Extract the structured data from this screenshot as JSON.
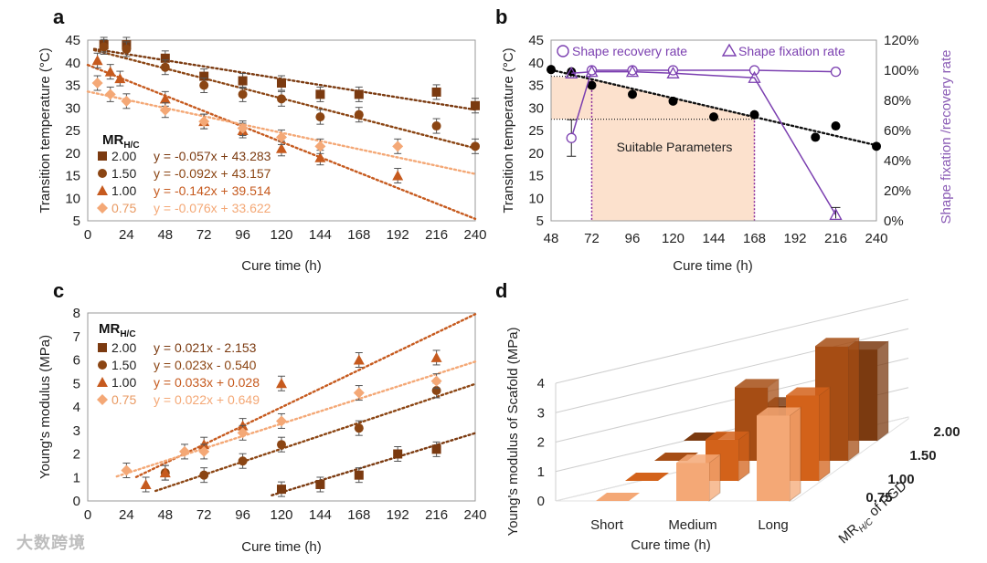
{
  "watermark": "大数跨境",
  "chart_data": [
    {
      "id": "a",
      "type": "scatter",
      "panel_label": "a",
      "xlabel": "Cure time (h)",
      "ylabel": "Transition temperature (°C)",
      "xticks": [
        0,
        24,
        48,
        72,
        96,
        120,
        144,
        168,
        192,
        216,
        240
      ],
      "yticks": [
        5,
        10,
        15,
        20,
        25,
        30,
        35,
        40,
        45
      ],
      "xlim": [
        0,
        240
      ],
      "ylim": [
        5,
        45
      ],
      "legend_title": "MRH/C",
      "legend_title_main": "MR",
      "legend_title_sub": "H/C",
      "series": [
        {
          "name": "2.00",
          "marker": "square",
          "color": "#7b3a10",
          "equation": "y = -0.057x + 43.283",
          "slope": -0.057,
          "intercept": 43.283,
          "x": [
            10,
            24,
            48,
            72,
            96,
            120,
            144,
            168,
            216,
            240
          ],
          "y": [
            44,
            44,
            41,
            37,
            36,
            35.5,
            33,
            33,
            33.5,
            30.5
          ]
        },
        {
          "name": "1.50",
          "marker": "circle",
          "color": "#8b4513",
          "equation": "y = -0.092x + 43.157",
          "slope": -0.092,
          "intercept": 43.157,
          "x": [
            10,
            24,
            48,
            72,
            96,
            120,
            144,
            168,
            216,
            240
          ],
          "y": [
            43.5,
            43,
            39,
            35,
            33,
            32,
            28,
            28.5,
            26,
            21.5
          ]
        },
        {
          "name": "1.00",
          "marker": "triangle",
          "color": "#c65a1e",
          "equation": "y = -0.142x + 39.514",
          "slope": -0.142,
          "intercept": 39.514,
          "x": [
            6,
            14,
            20,
            48,
            72,
            96,
            120,
            144,
            192
          ],
          "y": [
            40.5,
            38,
            36.5,
            32,
            27,
            25,
            21,
            19,
            15
          ]
        },
        {
          "name": "0.75",
          "marker": "diamond",
          "color": "#f4a876",
          "equation": "y = -0.076x + 33.622",
          "slope": -0.076,
          "intercept": 33.622,
          "x": [
            6,
            14,
            24,
            48,
            72,
            96,
            120,
            144,
            192
          ],
          "y": [
            35.5,
            33,
            31.5,
            29.5,
            27,
            25.5,
            23.5,
            21.5,
            21.5
          ]
        }
      ]
    },
    {
      "id": "b",
      "type": "scatter",
      "panel_label": "b",
      "xlabel": "Cure time (h)",
      "ylabel": "Transition temperature (°C)",
      "y2label": "Shape fixation /recovery rate",
      "xticks": [
        48,
        72,
        96,
        120,
        144,
        168,
        192,
        216,
        240
      ],
      "yticks": [
        5,
        10,
        15,
        20,
        25,
        30,
        35,
        40,
        45
      ],
      "y2ticks": [
        "0%",
        "20%",
        "40%",
        "60%",
        "80%",
        "100%",
        "120%"
      ],
      "xlim": [
        48,
        240
      ],
      "ylim": [
        5,
        45
      ],
      "y2lim": [
        0,
        120
      ],
      "annotation": "Suitable Parameters",
      "region": {
        "x0": 72,
        "x1": 168,
        "y_top_left": 37,
        "y_bottom": 27.5
      },
      "legend": [
        "Shape recovery rate",
        "Shape fixation rate"
      ],
      "temperature": {
        "x": [
          48,
          60,
          72,
          96,
          120,
          144,
          168,
          204,
          216,
          240
        ],
        "y": [
          38.5,
          38,
          35,
          33,
          31.5,
          28,
          28.5,
          23.5,
          26,
          21.5
        ],
        "trend_slope": -0.087,
        "trend_intercept": 42.6
      },
      "recovery": {
        "x": [
          60,
          72,
          96,
          120,
          168,
          216
        ],
        "y": [
          55,
          100,
          100,
          100,
          100,
          99
        ]
      },
      "fixation": {
        "x": [
          60,
          72,
          96,
          120,
          168,
          216
        ],
        "y": [
          98,
          99,
          99,
          98,
          95,
          4
        ]
      }
    },
    {
      "id": "c",
      "type": "scatter",
      "panel_label": "c",
      "xlabel": "Cure time  (h)",
      "ylabel": "Young's modulus  (MPa)",
      "xticks": [
        0,
        24,
        48,
        72,
        96,
        120,
        144,
        168,
        192,
        216,
        240
      ],
      "yticks": [
        0,
        1,
        2,
        3,
        4,
        5,
        6,
        7,
        8
      ],
      "xlim": [
        0,
        240
      ],
      "ylim": [
        0,
        8
      ],
      "legend_title": "MRH/C",
      "legend_title_main": "MR",
      "legend_title_sub": "H/C",
      "series": [
        {
          "name": "2.00",
          "marker": "square",
          "color": "#7b3a10",
          "equation": "y = 0.021x - 2.153",
          "slope": 0.021,
          "intercept": -2.153,
          "x": [
            120,
            144,
            168,
            192,
            216
          ],
          "y": [
            0.5,
            0.7,
            1.1,
            2.0,
            2.2
          ]
        },
        {
          "name": "1.50",
          "marker": "circle",
          "color": "#8b4513",
          "equation": "y = 0.023x - 0.540",
          "slope": 0.023,
          "intercept": -0.54,
          "x": [
            48,
            72,
            96,
            120,
            168,
            216
          ],
          "y": [
            1.2,
            1.1,
            1.7,
            2.4,
            3.1,
            4.7
          ]
        },
        {
          "name": "1.00",
          "marker": "triangle",
          "color": "#c65a1e",
          "equation": "y = 0.033x + 0.028",
          "slope": 0.033,
          "intercept": 0.028,
          "x": [
            36,
            48,
            72,
            96,
            120,
            168,
            216
          ],
          "y": [
            0.7,
            1.2,
            2.4,
            3.2,
            5.0,
            6.0,
            6.1
          ]
        },
        {
          "name": "0.75",
          "marker": "diamond",
          "color": "#f4a876",
          "equation": "y = 0.022x + 0.649",
          "slope": 0.022,
          "intercept": 0.649,
          "x": [
            24,
            60,
            72,
            96,
            120,
            168,
            216
          ],
          "y": [
            1.3,
            2.1,
            2.1,
            2.9,
            3.4,
            4.6,
            5.1
          ]
        }
      ]
    },
    {
      "id": "d",
      "type": "bar",
      "panel_label": "d",
      "xlabel": "Cure time (h)",
      "ylabel": "Young's modulus of Scafold (MPa)",
      "depth_label": "MRH/C of PGD",
      "depth_label_main": "MR",
      "depth_label_sub": "H/C",
      "depth_label_rest": " of PGD",
      "categories": [
        "Short",
        "Medium",
        "Long"
      ],
      "yticks": [
        0,
        1,
        2,
        3,
        4
      ],
      "ylim": [
        0,
        4
      ],
      "series": [
        {
          "name": "0.75",
          "color": "#f4a876",
          "values": [
            0,
            1.3,
            2.9
          ]
        },
        {
          "name": "1.00",
          "color": "#d3621a",
          "values": [
            0,
            1.4,
            2.9
          ]
        },
        {
          "name": "1.50",
          "color": "#a64d14",
          "values": [
            0,
            2.5,
            3.9
          ]
        },
        {
          "name": "2.00",
          "color": "#7b3a10",
          "values": [
            0,
            1.2,
            3.1
          ]
        }
      ]
    }
  ]
}
